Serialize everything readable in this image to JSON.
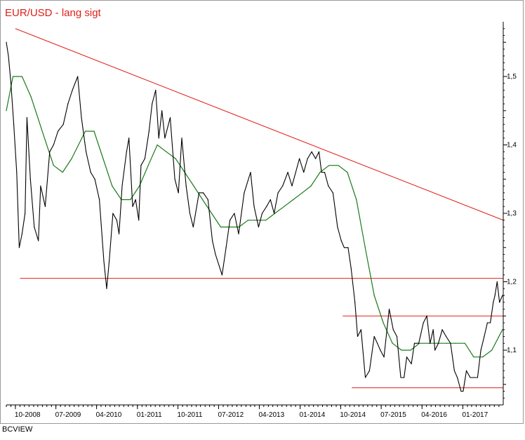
{
  "brand": "BCVIEW",
  "colors": {
    "price": "#000000",
    "moving_average": "#1a7a1a",
    "trendlines": "#e0201a",
    "axis": "#000000",
    "frame": "#9a9a9a"
  },
  "chart_data": {
    "type": "line",
    "title": "EUR/USD - lang sigt",
    "xlabel": "",
    "ylabel": "",
    "ylim": [
      1.02,
      1.58
    ],
    "xlim": [
      "2008-08-01",
      "2017-09-30"
    ],
    "grid": false,
    "y_axis_position": "right",
    "x_tick_labels": [
      "10-2008",
      "07-2009",
      "04-2010",
      "01-2011",
      "10-2011",
      "07-2012",
      "04-2013",
      "01-2014",
      "10-2014",
      "07-2015",
      "04-2016",
      "01-2017"
    ],
    "x_tick_dates": [
      "2008-10-01",
      "2009-07-01",
      "2010-04-01",
      "2011-01-01",
      "2011-10-01",
      "2012-07-01",
      "2013-04-01",
      "2014-01-01",
      "2014-10-01",
      "2015-07-01",
      "2016-04-01",
      "2017-01-01"
    ],
    "y_tick_labels": [
      "1,1",
      "1,2",
      "1,3",
      "1,4",
      "1,5"
    ],
    "y_tick_values": [
      1.1,
      1.2,
      1.3,
      1.4,
      1.5
    ],
    "series": [
      {
        "key": "price",
        "x": [
          "2008-08-01",
          "2008-08-15",
          "2008-09-01",
          "2008-09-20",
          "2008-10-10",
          "2008-10-27",
          "2008-11-15",
          "2008-12-05",
          "2008-12-18",
          "2009-01-10",
          "2009-02-05",
          "2009-03-05",
          "2009-03-20",
          "2009-04-20",
          "2009-05-20",
          "2009-06-15",
          "2009-07-15",
          "2009-08-20",
          "2009-09-20",
          "2009-10-20",
          "2009-11-25",
          "2009-12-20",
          "2010-01-20",
          "2010-02-20",
          "2010-03-20",
          "2010-04-20",
          "2010-05-20",
          "2010-06-08",
          "2010-06-25",
          "2010-07-20",
          "2010-08-15",
          "2010-08-30",
          "2010-09-20",
          "2010-10-20",
          "2010-11-05",
          "2010-11-30",
          "2010-12-20",
          "2011-01-10",
          "2011-01-25",
          "2011-02-20",
          "2011-03-20",
          "2011-04-10",
          "2011-05-04",
          "2011-05-25",
          "2011-06-15",
          "2011-07-05",
          "2011-08-10",
          "2011-09-10",
          "2011-10-04",
          "2011-10-27",
          "2011-11-25",
          "2011-12-20",
          "2012-01-12",
          "2012-02-20",
          "2012-03-20",
          "2012-04-20",
          "2012-05-20",
          "2012-06-10",
          "2012-07-24",
          "2012-08-20",
          "2012-09-15",
          "2012-10-15",
          "2012-11-13",
          "2012-12-20",
          "2013-02-01",
          "2013-02-25",
          "2013-03-27",
          "2013-04-20",
          "2013-05-20",
          "2013-06-15",
          "2013-07-10",
          "2013-08-05",
          "2013-09-05",
          "2013-10-10",
          "2013-11-07",
          "2013-12-27",
          "2014-01-25",
          "2014-02-20",
          "2014-03-20",
          "2014-04-15",
          "2014-05-08",
          "2014-05-25",
          "2014-06-15",
          "2014-07-10",
          "2014-08-10",
          "2014-09-10",
          "2014-10-05",
          "2014-10-25",
          "2014-11-20",
          "2014-12-10",
          "2015-01-05",
          "2015-01-23",
          "2015-02-15",
          "2015-03-16",
          "2015-04-13",
          "2015-05-15",
          "2015-06-05",
          "2015-06-25",
          "2015-07-20",
          "2015-08-24",
          "2015-09-20",
          "2015-10-15",
          "2015-11-10",
          "2015-12-02",
          "2015-12-20",
          "2016-01-20",
          "2016-02-10",
          "2016-03-10",
          "2016-04-10",
          "2016-05-03",
          "2016-05-25",
          "2016-06-15",
          "2016-06-27",
          "2016-07-20",
          "2016-08-15",
          "2016-09-10",
          "2016-10-10",
          "2016-11-05",
          "2016-11-25",
          "2016-12-20",
          "2017-01-03",
          "2017-01-25",
          "2017-02-20",
          "2017-03-15",
          "2017-04-10",
          "2017-05-02",
          "2017-05-25",
          "2017-06-15",
          "2017-07-05",
          "2017-07-25",
          "2017-08-05",
          "2017-08-20",
          "2017-09-05",
          "2017-09-25"
        ],
        "values": [
          1.55,
          1.53,
          1.49,
          1.43,
          1.36,
          1.25,
          1.27,
          1.3,
          1.44,
          1.35,
          1.28,
          1.26,
          1.34,
          1.31,
          1.39,
          1.4,
          1.42,
          1.43,
          1.46,
          1.48,
          1.5,
          1.44,
          1.39,
          1.36,
          1.35,
          1.32,
          1.23,
          1.19,
          1.23,
          1.3,
          1.29,
          1.27,
          1.34,
          1.39,
          1.41,
          1.31,
          1.32,
          1.29,
          1.37,
          1.38,
          1.42,
          1.46,
          1.48,
          1.41,
          1.45,
          1.41,
          1.44,
          1.35,
          1.33,
          1.41,
          1.34,
          1.3,
          1.28,
          1.33,
          1.33,
          1.32,
          1.26,
          1.24,
          1.21,
          1.25,
          1.29,
          1.3,
          1.27,
          1.33,
          1.36,
          1.31,
          1.28,
          1.3,
          1.31,
          1.32,
          1.3,
          1.33,
          1.34,
          1.36,
          1.34,
          1.38,
          1.36,
          1.38,
          1.39,
          1.38,
          1.39,
          1.36,
          1.36,
          1.34,
          1.33,
          1.28,
          1.26,
          1.25,
          1.25,
          1.22,
          1.17,
          1.12,
          1.13,
          1.06,
          1.07,
          1.12,
          1.11,
          1.1,
          1.09,
          1.16,
          1.13,
          1.12,
          1.06,
          1.06,
          1.09,
          1.08,
          1.11,
          1.11,
          1.14,
          1.15,
          1.11,
          1.13,
          1.1,
          1.11,
          1.13,
          1.12,
          1.11,
          1.07,
          1.06,
          1.04,
          1.04,
          1.07,
          1.06,
          1.06,
          1.06,
          1.1,
          1.12,
          1.14,
          1.14,
          1.17,
          1.18,
          1.2,
          1.17,
          1.18
        ]
      },
      {
        "key": "moving_average",
        "x": [
          "2008-08-01",
          "2008-09-15",
          "2008-11-15",
          "2009-01-15",
          "2009-04-15",
          "2009-06-15",
          "2009-08-15",
          "2009-10-15",
          "2010-01-15",
          "2010-03-15",
          "2010-05-15",
          "2010-07-15",
          "2010-09-15",
          "2010-11-15",
          "2011-01-15",
          "2011-03-15",
          "2011-05-15",
          "2011-07-15",
          "2011-09-15",
          "2011-11-15",
          "2012-01-15",
          "2012-03-15",
          "2012-05-15",
          "2012-07-15",
          "2012-09-15",
          "2012-11-15",
          "2013-01-15",
          "2013-03-15",
          "2013-05-15",
          "2013-07-15",
          "2013-09-15",
          "2013-11-15",
          "2014-01-15",
          "2014-03-15",
          "2014-05-15",
          "2014-07-15",
          "2014-09-15",
          "2014-11-15",
          "2015-01-15",
          "2015-03-15",
          "2015-05-15",
          "2015-07-15",
          "2015-09-15",
          "2015-11-15",
          "2016-01-15",
          "2016-03-15",
          "2016-05-15",
          "2016-07-15",
          "2016-09-15",
          "2016-11-15",
          "2017-01-15",
          "2017-03-15",
          "2017-05-15",
          "2017-07-15",
          "2017-09-25"
        ],
        "values": [
          1.45,
          1.5,
          1.5,
          1.47,
          1.41,
          1.37,
          1.36,
          1.38,
          1.42,
          1.42,
          1.38,
          1.34,
          1.32,
          1.32,
          1.34,
          1.37,
          1.4,
          1.39,
          1.38,
          1.36,
          1.34,
          1.32,
          1.3,
          1.28,
          1.28,
          1.28,
          1.29,
          1.29,
          1.29,
          1.3,
          1.31,
          1.32,
          1.33,
          1.34,
          1.36,
          1.37,
          1.37,
          1.36,
          1.32,
          1.25,
          1.18,
          1.14,
          1.11,
          1.1,
          1.1,
          1.11,
          1.11,
          1.11,
          1.11,
          1.11,
          1.11,
          1.09,
          1.09,
          1.1,
          1.13
        ]
      }
    ],
    "trendlines": [
      {
        "x": [
          "2008-10-01",
          "2017-09-30"
        ],
        "values": [
          1.57,
          1.29
        ]
      },
      {
        "x": [
          "2008-11-01",
          "2017-09-30"
        ],
        "values": [
          1.205,
          1.205
        ]
      },
      {
        "x": [
          "2014-10-15",
          "2017-09-30"
        ],
        "values": [
          1.15,
          1.15
        ]
      },
      {
        "x": [
          "2014-12-15",
          "2017-09-30"
        ],
        "values": [
          1.045,
          1.045
        ]
      }
    ]
  }
}
